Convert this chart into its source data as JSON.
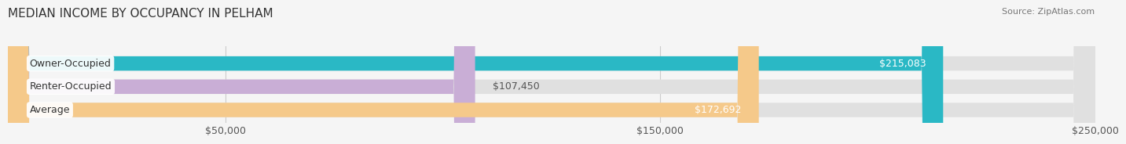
{
  "title": "MEDIAN INCOME BY OCCUPANCY IN PELHAM",
  "source": "Source: ZipAtlas.com",
  "categories": [
    "Owner-Occupied",
    "Renter-Occupied",
    "Average"
  ],
  "values": [
    215083,
    107450,
    172692
  ],
  "labels": [
    "$215,083",
    "$107,450",
    "$172,692"
  ],
  "bar_colors": [
    "#2ab8c5",
    "#c9aed6",
    "#f5c98a"
  ],
  "label_colors": [
    "#ffffff",
    "#555555",
    "#ffffff"
  ],
  "xlim": [
    0,
    250000
  ],
  "xticks": [
    50000,
    150000,
    250000
  ],
  "xticklabels": [
    "$50,000",
    "$150,000",
    "$250,000"
  ],
  "background_color": "#f5f5f5",
  "bar_background_color": "#e0e0e0",
  "title_fontsize": 11,
  "tick_fontsize": 9,
  "bar_label_fontsize": 9,
  "category_label_fontsize": 9
}
